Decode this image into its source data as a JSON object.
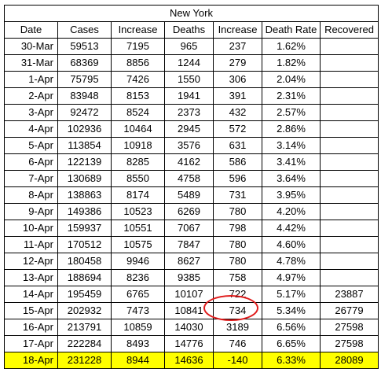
{
  "title": "New York",
  "headers": [
    "Date",
    "Cases",
    "Increase",
    "Deaths",
    "Increase",
    "Death Rate",
    "Recovered"
  ],
  "rows": [
    [
      "30-Mar",
      "59513",
      "7195",
      "965",
      "237",
      "1.62%",
      ""
    ],
    [
      "31-Mar",
      "68369",
      "8856",
      "1244",
      "279",
      "1.82%",
      ""
    ],
    [
      "1-Apr",
      "75795",
      "7426",
      "1550",
      "306",
      "2.04%",
      ""
    ],
    [
      "2-Apr",
      "83948",
      "8153",
      "1941",
      "391",
      "2.31%",
      ""
    ],
    [
      "3-Apr",
      "92472",
      "8524",
      "2373",
      "432",
      "2.57%",
      ""
    ],
    [
      "4-Apr",
      "102936",
      "10464",
      "2945",
      "572",
      "2.86%",
      ""
    ],
    [
      "5-Apr",
      "113854",
      "10918",
      "3576",
      "631",
      "3.14%",
      ""
    ],
    [
      "6-Apr",
      "122139",
      "8285",
      "4162",
      "586",
      "3.41%",
      ""
    ],
    [
      "7-Apr",
      "130689",
      "8550",
      "4758",
      "596",
      "3.64%",
      ""
    ],
    [
      "8-Apr",
      "138863",
      "8174",
      "5489",
      "731",
      "3.95%",
      ""
    ],
    [
      "9-Apr",
      "149386",
      "10523",
      "6269",
      "780",
      "4.20%",
      ""
    ],
    [
      "10-Apr",
      "159937",
      "10551",
      "7067",
      "798",
      "4.42%",
      ""
    ],
    [
      "11-Apr",
      "170512",
      "10575",
      "7847",
      "780",
      "4.60%",
      ""
    ],
    [
      "12-Apr",
      "180458",
      "9946",
      "8627",
      "780",
      "4.78%",
      ""
    ],
    [
      "13-Apr",
      "188694",
      "8236",
      "9385",
      "758",
      "4.97%",
      ""
    ],
    [
      "14-Apr",
      "195459",
      "6765",
      "10107",
      "722",
      "5.17%",
      "23887"
    ],
    [
      "15-Apr",
      "202932",
      "7473",
      "10841",
      "734",
      "5.34%",
      "26779"
    ],
    [
      "16-Apr",
      "213791",
      "10859",
      "14030",
      "3189",
      "6.56%",
      "27598"
    ],
    [
      "17-Apr",
      "222284",
      "8493",
      "14776",
      "746",
      "6.65%",
      "27598"
    ],
    [
      "18-Apr",
      "231228",
      "8944",
      "14636",
      "-140",
      "6.33%",
      "28089"
    ]
  ],
  "highlight_row": 19,
  "highlight_color": "#ffff00",
  "circle_color": "#e01b1b"
}
